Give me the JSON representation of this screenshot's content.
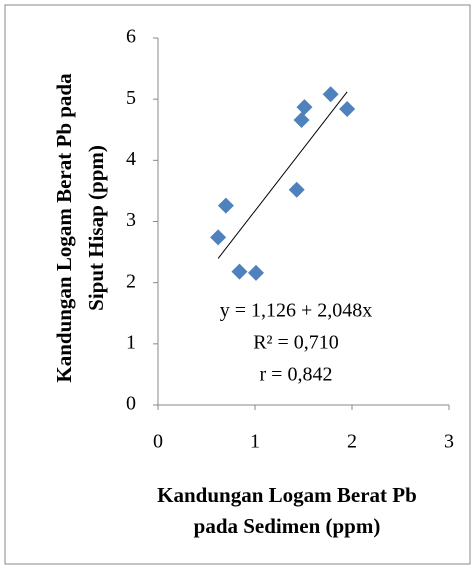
{
  "chart_data": {
    "type": "scatter",
    "x_label": [
      "Kandungan Logam Berat Pb",
      "pada Sedimen (ppm)"
    ],
    "y_label": [
      "Kandungan Logam Berat Pb pada",
      "Siput Hisap (ppm)"
    ],
    "x": [
      0.62,
      0.7,
      0.84,
      1.01,
      1.43,
      1.48,
      1.51,
      1.78,
      1.95
    ],
    "values": [
      2.74,
      3.26,
      2.18,
      2.16,
      3.52,
      4.66,
      4.87,
      5.08,
      4.84
    ],
    "color": "#4f81bd",
    "trendline": {
      "intercept": 1.126,
      "slope": 2.048
    },
    "annotations": [
      "y = 1,126 + 2,048x",
      "R² = 0,710",
      "r  = 0,842"
    ],
    "xlim": [
      0,
      3
    ],
    "xticks": [
      0,
      1,
      2,
      3
    ],
    "ylim": [
      0,
      6
    ],
    "yticks": [
      0,
      1,
      2,
      3,
      4,
      5,
      6
    ]
  }
}
